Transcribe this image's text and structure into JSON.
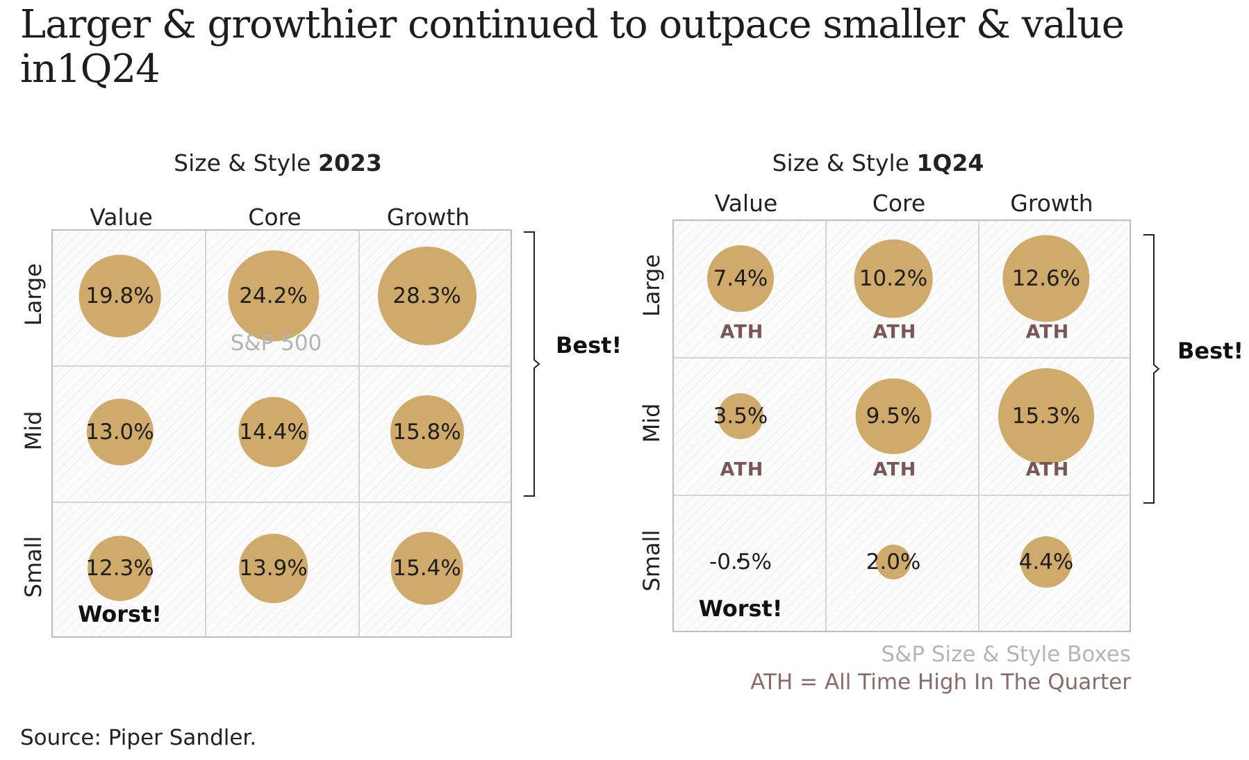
{
  "title": "Larger & growthier continued to outpace smaller & value in1Q24",
  "chart_data": [
    {
      "type": "bubble-grid",
      "title_prefix": "Size & Style",
      "title_bold": "2023",
      "columns": [
        "Value",
        "Core",
        "Growth"
      ],
      "rows": [
        "Large",
        "Mid",
        "Small"
      ],
      "values": [
        [
          19.8,
          24.2,
          28.3
        ],
        [
          13.0,
          14.4,
          15.8
        ],
        [
          12.3,
          13.9,
          15.4
        ]
      ],
      "labels": [
        [
          "19.8%",
          "24.2%",
          "28.3%"
        ],
        [
          "13.0%",
          "14.4%",
          "15.8%"
        ],
        [
          "12.3%",
          "13.9%",
          "15.4%"
        ]
      ],
      "ath": [
        [
          false,
          false,
          false
        ],
        [
          false,
          false,
          false
        ],
        [
          false,
          false,
          false
        ]
      ],
      "notes": [
        {
          "row": 0,
          "col": 1,
          "text": "S&P 500"
        }
      ],
      "best_label": "Best!",
      "best_rows": [
        "Large",
        "Mid"
      ],
      "worst_label": "Worst!",
      "worst_cell": {
        "row": 2,
        "col": 0
      },
      "bubble_color": "#cfaa6a"
    },
    {
      "type": "bubble-grid",
      "title_prefix": "Size & Style",
      "title_bold": "1Q24",
      "columns": [
        "Value",
        "Core",
        "Growth"
      ],
      "rows": [
        "Large",
        "Mid",
        "Small"
      ],
      "values": [
        [
          7.4,
          10.2,
          12.6
        ],
        [
          3.5,
          9.5,
          15.3
        ],
        [
          -0.5,
          2.0,
          4.4
        ]
      ],
      "labels": [
        [
          "7.4%",
          "10.2%",
          "12.6%"
        ],
        [
          "3.5%",
          "9.5%",
          "15.3%"
        ],
        [
          "-0.5%",
          "2.0%",
          "4.4%"
        ]
      ],
      "ath": [
        [
          true,
          true,
          true
        ],
        [
          true,
          true,
          true
        ],
        [
          false,
          false,
          false
        ]
      ],
      "ath_label": "ATH",
      "best_label": "Best!",
      "best_rows": [
        "Large",
        "Mid"
      ],
      "worst_label": "Worst!",
      "worst_cell": {
        "row": 2,
        "col": 0
      },
      "bubble_color": "#cfaa6a"
    }
  ],
  "legend": {
    "line1": "S&P Size & Style Boxes",
    "line2": "ATH = All Time High In The Quarter"
  },
  "source": "Source: Piper Sandler."
}
